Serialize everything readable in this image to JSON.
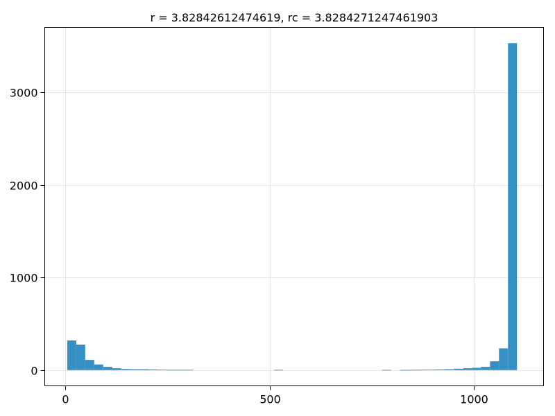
{
  "chart_data": {
    "type": "bar",
    "title": "r = 3.82842612474619, rc = 3.8284271247461903",
    "xlabel": "",
    "ylabel": "",
    "xlim": [
      -50,
      1170
    ],
    "ylim": [
      -170,
      3700
    ],
    "grid": true,
    "bar_color": "#3790c4",
    "x_ticks": [
      {
        "value": 0,
        "label": "0"
      },
      {
        "value": 500,
        "label": "500"
      },
      {
        "value": 1000,
        "label": "1000"
      }
    ],
    "y_ticks": [
      {
        "value": 0,
        "label": "0"
      },
      {
        "value": 1000,
        "label": "1000"
      },
      {
        "value": 2000,
        "label": "2000"
      },
      {
        "value": 3000,
        "label": "3000"
      }
    ],
    "bin_width": 22,
    "bins": [
      {
        "x0": 5,
        "count": 320
      },
      {
        "x0": 27,
        "count": 275
      },
      {
        "x0": 49,
        "count": 110
      },
      {
        "x0": 71,
        "count": 60
      },
      {
        "x0": 93,
        "count": 35
      },
      {
        "x0": 115,
        "count": 20
      },
      {
        "x0": 137,
        "count": 12
      },
      {
        "x0": 159,
        "count": 10
      },
      {
        "x0": 181,
        "count": 10
      },
      {
        "x0": 203,
        "count": 8
      },
      {
        "x0": 225,
        "count": 5
      },
      {
        "x0": 247,
        "count": 3
      },
      {
        "x0": 269,
        "count": 3
      },
      {
        "x0": 291,
        "count": 3
      },
      {
        "x0": 511,
        "count": 3
      },
      {
        "x0": 775,
        "count": 2
      },
      {
        "x0": 819,
        "count": 2
      },
      {
        "x0": 841,
        "count": 3
      },
      {
        "x0": 863,
        "count": 4
      },
      {
        "x0": 885,
        "count": 5
      },
      {
        "x0": 907,
        "count": 8
      },
      {
        "x0": 929,
        "count": 10
      },
      {
        "x0": 951,
        "count": 15
      },
      {
        "x0": 973,
        "count": 20
      },
      {
        "x0": 995,
        "count": 25
      },
      {
        "x0": 1017,
        "count": 35
      },
      {
        "x0": 1039,
        "count": 95
      },
      {
        "x0": 1061,
        "count": 235
      },
      {
        "x0": 1083,
        "count": 3530
      }
    ]
  }
}
